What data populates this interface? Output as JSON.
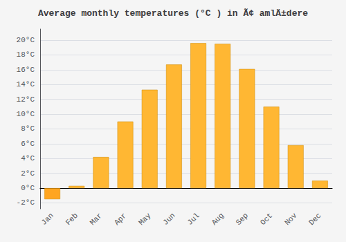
{
  "chart_data": {
    "type": "bar",
    "title": "Average monthly temperatures (°C ) in Ã¢ amlÄ±dere",
    "categories": [
      "Jan",
      "Feb",
      "Mar",
      "Apr",
      "May",
      "Jun",
      "Jul",
      "Aug",
      "Sep",
      "Oct",
      "Nov",
      "Dec"
    ],
    "values": [
      -1.5,
      0.3,
      4.2,
      9.0,
      13.3,
      16.7,
      19.6,
      19.5,
      16.1,
      11.0,
      5.8,
      1.0
    ],
    "colors": [
      "#FFA520",
      "#FFB733",
      "#FFB733",
      "#FFB733",
      "#FFB733",
      "#FFB733",
      "#FFB733",
      "#FFB733",
      "#FFB733",
      "#FFB733",
      "#FFB733",
      "#FFB733"
    ],
    "ylim": [
      -2.8,
      21.5
    ],
    "yticks": [
      {
        "value": -2,
        "label": "-2°C"
      },
      {
        "value": 0,
        "label": "0°C"
      },
      {
        "value": 2,
        "label": "2°C"
      },
      {
        "value": 4,
        "label": "4°C"
      },
      {
        "value": 6,
        "label": "6°C"
      },
      {
        "value": 8,
        "label": "8°C"
      },
      {
        "value": 10,
        "label": "10°C"
      },
      {
        "value": 12,
        "label": "12°C"
      },
      {
        "value": 14,
        "label": "14°C"
      },
      {
        "value": 16,
        "label": "16°C"
      },
      {
        "value": 18,
        "label": "18°C"
      },
      {
        "value": 20,
        "label": "20°C"
      }
    ],
    "grid": true
  }
}
